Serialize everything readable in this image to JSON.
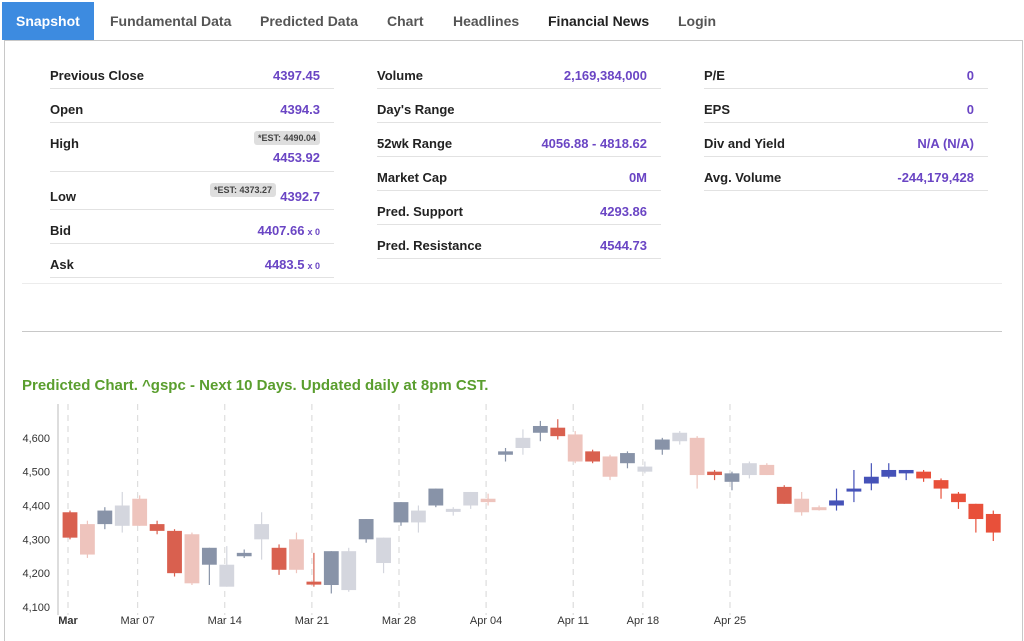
{
  "tabs": {
    "snapshot": "Snapshot",
    "fundamental": "Fundamental Data",
    "predicted": "Predicted Data",
    "chart": "Chart",
    "headlines": "Headlines",
    "financial_news": "Financial News",
    "login": "Login"
  },
  "col1": {
    "previous_close": {
      "label": "Previous Close",
      "value": "4397.45"
    },
    "open": {
      "label": "Open",
      "value": "4394.3"
    },
    "high": {
      "label": "High",
      "est": "*EST: 4490.04",
      "value": "4453.92"
    },
    "low": {
      "label": "Low",
      "est": "*EST: 4373.27",
      "value": "4392.7"
    },
    "bid": {
      "label": "Bid",
      "value": "4407.66",
      "size": "x 0"
    },
    "ask": {
      "label": "Ask",
      "value": "4483.5",
      "size": "x 0"
    }
  },
  "col2": {
    "volume": {
      "label": "Volume",
      "value": "2,169,384,000"
    },
    "days_range": {
      "label": "Day's Range",
      "value": ""
    },
    "wk52_range": {
      "label": "52wk Range",
      "value": "4056.88 - 4818.62"
    },
    "market_cap": {
      "label": "Market Cap",
      "value": "0M"
    },
    "pred_support": {
      "label": "Pred. Support",
      "value": "4293.86"
    },
    "pred_resistance": {
      "label": "Pred. Resistance",
      "value": "4544.73"
    }
  },
  "col3": {
    "pe": {
      "label": "P/E",
      "value": "0"
    },
    "eps": {
      "label": "EPS",
      "value": "0"
    },
    "div_yield": {
      "label": "Div and Yield",
      "value": "N/A (N/A)"
    },
    "avg_volume": {
      "label": "Avg. Volume",
      "value": "-244,179,428"
    }
  },
  "chart_title": "Predicted Chart. ^gspc - Next 10 Days. Updated daily at 8pm CST.",
  "colors": {
    "accent": "#3d8be0",
    "value": "#6a45c4",
    "title_green": "#5a9e2e",
    "up_actual": "#8893a8",
    "down_actual": "#d9604f",
    "up_pred": "#4552b8",
    "down_pred": "#e8503a"
  },
  "chart_data": {
    "type": "candlestick",
    "title": "Predicted Chart. ^gspc - Next 10 Days. Updated daily at 8pm CST.",
    "ylim": [
      4100,
      4700
    ],
    "y_ticks": [
      "4,100",
      "4,200",
      "4,300",
      "4,400",
      "4,500",
      "4,600"
    ],
    "x_ticks": [
      {
        "label": "Mar",
        "index": 0,
        "bold": true
      },
      {
        "label": "Mar 07",
        "index": 4
      },
      {
        "label": "Mar 14",
        "index": 9
      },
      {
        "label": "Mar 21",
        "index": 14
      },
      {
        "label": "Mar 28",
        "index": 19
      },
      {
        "label": "Apr 04",
        "index": 24
      },
      {
        "label": "Apr 11",
        "index": 29
      },
      {
        "label": "Apr 18",
        "index": 33
      },
      {
        "label": "Apr 25",
        "index": 38
      }
    ],
    "candles": [
      {
        "o": 4380,
        "h": 4385,
        "l": 4300,
        "c": 4305,
        "kind": "down"
      },
      {
        "o": 4345,
        "h": 4355,
        "l": 4245,
        "c": 4255,
        "kind": "down_light"
      },
      {
        "o": 4345,
        "h": 4395,
        "l": 4330,
        "c": 4385,
        "kind": "up"
      },
      {
        "o": 4340,
        "h": 4440,
        "l": 4320,
        "c": 4400,
        "kind": "up_light"
      },
      {
        "o": 4420,
        "h": 4430,
        "l": 4340,
        "c": 4340,
        "kind": "down_light"
      },
      {
        "o": 4345,
        "h": 4355,
        "l": 4315,
        "c": 4325,
        "kind": "down"
      },
      {
        "o": 4325,
        "h": 4330,
        "l": 4190,
        "c": 4200,
        "kind": "down"
      },
      {
        "o": 4315,
        "h": 4320,
        "l": 4165,
        "c": 4170,
        "kind": "down_light"
      },
      {
        "o": 4225,
        "h": 4275,
        "l": 4165,
        "c": 4275,
        "kind": "up"
      },
      {
        "o": 4225,
        "h": 4280,
        "l": 4160,
        "c": 4160,
        "kind": "up_light"
      },
      {
        "o": 4250,
        "h": 4270,
        "l": 4245,
        "c": 4260,
        "kind": "up"
      },
      {
        "o": 4300,
        "h": 4380,
        "l": 4240,
        "c": 4345,
        "kind": "up_light"
      },
      {
        "o": 4275,
        "h": 4285,
        "l": 4195,
        "c": 4210,
        "kind": "down"
      },
      {
        "o": 4300,
        "h": 4320,
        "l": 4200,
        "c": 4210,
        "kind": "down_light"
      },
      {
        "o": 4175,
        "h": 4260,
        "l": 4160,
        "c": 4175,
        "kind": "down"
      },
      {
        "o": 4165,
        "h": 4265,
        "l": 4140,
        "c": 4265,
        "kind": "up"
      },
      {
        "o": 4150,
        "h": 4275,
        "l": 4145,
        "c": 4265,
        "kind": "up_light"
      },
      {
        "o": 4300,
        "h": 4360,
        "l": 4290,
        "c": 4360,
        "kind": "up"
      },
      {
        "o": 4230,
        "h": 4305,
        "l": 4200,
        "c": 4305,
        "kind": "up_light"
      },
      {
        "o": 4350,
        "h": 4410,
        "l": 4340,
        "c": 4410,
        "kind": "up"
      },
      {
        "o": 4350,
        "h": 4400,
        "l": 4320,
        "c": 4385,
        "kind": "up_light"
      },
      {
        "o": 4400,
        "h": 4450,
        "l": 4395,
        "c": 4450,
        "kind": "up"
      },
      {
        "o": 4385,
        "h": 4395,
        "l": 4370,
        "c": 4390,
        "kind": "up_light"
      },
      {
        "o": 4400,
        "h": 4440,
        "l": 4390,
        "c": 4440,
        "kind": "up_light"
      },
      {
        "o": 4420,
        "h": 4435,
        "l": 4400,
        "c": 4410,
        "kind": "down_light"
      }
    ],
    "note": "candle list continued in script"
  }
}
